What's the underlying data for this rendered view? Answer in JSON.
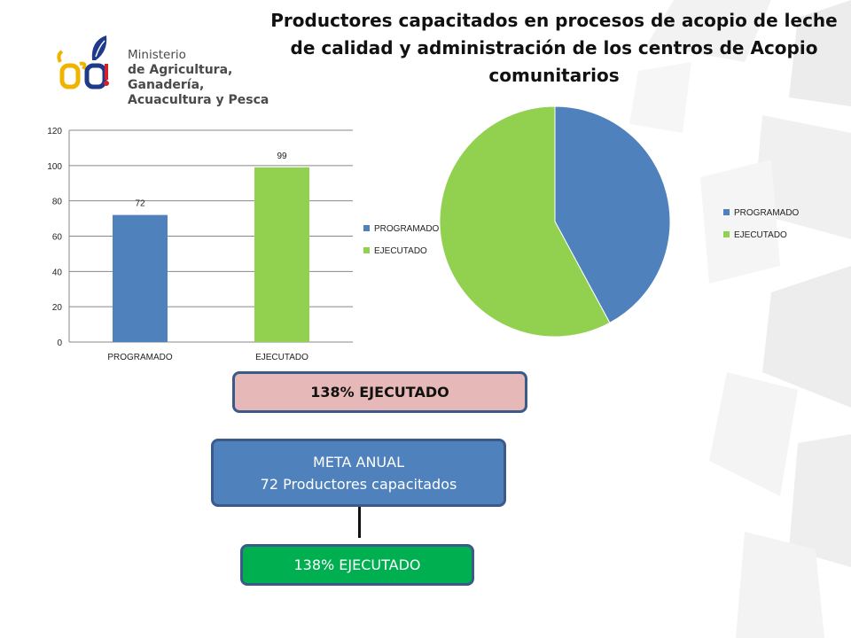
{
  "title": "Productores capacitados en procesos de acopio de leche de calidad y administración de los centros de Acopio comunitarios",
  "logo": {
    "line1": "Ministerio",
    "line2": "de Agricultura, Ganadería,",
    "line3": "Acuacultura y Pesca"
  },
  "colors": {
    "programado": "#4f81bd",
    "ejecutado": "#92d050",
    "gridline": "#888888",
    "box_pink": "#e6b8b7",
    "box_blue": "#4f81bd",
    "box_green": "#00b050"
  },
  "chart_data": [
    {
      "type": "bar",
      "categories": [
        "PROGRAMADO",
        "EJECUTADO"
      ],
      "values": [
        72,
        99
      ],
      "data_labels": [
        "72",
        "99"
      ],
      "ylim": [
        0,
        120
      ],
      "yticks": [
        0,
        20,
        40,
        60,
        80,
        100,
        120
      ],
      "grid": true,
      "legend_entries": [
        "PROGRAMADO",
        "EJECUTADO"
      ],
      "legend_placement": "right",
      "title": "",
      "xlabel": "",
      "ylabel": ""
    },
    {
      "type": "pie",
      "categories": [
        "PROGRAMADO",
        "EJECUTADO"
      ],
      "values": [
        72,
        99
      ],
      "legend_entries": [
        "PROGRAMADO",
        "EJECUTADO"
      ],
      "legend_placement": "right",
      "title": ""
    }
  ],
  "boxes": {
    "executed_top": "138%  EJECUTADO",
    "meta_line1": "META ANUAL",
    "meta_line2": "72 Productores capacitados",
    "executed_bottom": "138%  EJECUTADO"
  }
}
